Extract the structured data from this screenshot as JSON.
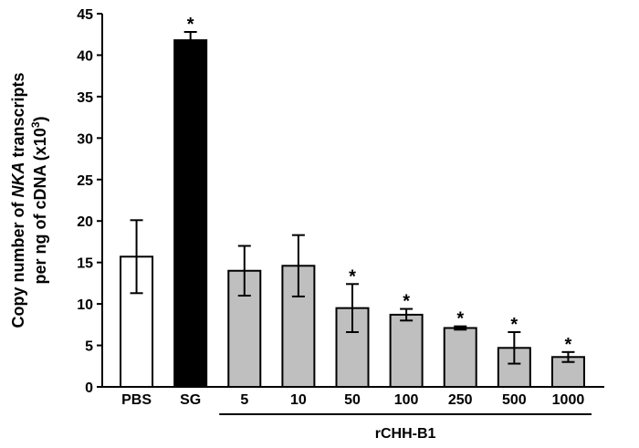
{
  "chart_data": {
    "type": "bar",
    "categories": [
      "PBS",
      "SG",
      "5",
      "10",
      "50",
      "100",
      "250",
      "500",
      "1000"
    ],
    "values": [
      15.7,
      41.8,
      14.0,
      14.6,
      9.5,
      8.7,
      7.1,
      4.7,
      3.6
    ],
    "errors": [
      4.4,
      1.0,
      3.0,
      3.7,
      2.9,
      0.7,
      0.2,
      1.9,
      0.6
    ],
    "significance": [
      "",
      "*",
      "",
      "",
      "*",
      "*",
      "*",
      "*",
      "*"
    ],
    "bar_colors": [
      "#ffffff",
      "#000000",
      "#bfbfbf",
      "#bfbfbf",
      "#bfbfbf",
      "#bfbfbf",
      "#bfbfbf",
      "#bfbfbf",
      "#bfbfbf"
    ],
    "ylabel_line1_pre": "Copy number of ",
    "ylabel_line1_italic": "NKA",
    "ylabel_line1_post": " transcripts",
    "ylabel_line2_pre": "per ng of cDNA (x10",
    "ylabel_line2_sup": "3",
    "ylabel_line2_post": ")",
    "group_label": "rCHH-B1",
    "group_start_index": 2,
    "ylim": [
      0,
      45
    ],
    "yticks": [
      0,
      5,
      10,
      15,
      20,
      25,
      30,
      35,
      40,
      45
    ],
    "grid": false,
    "legend": "none"
  }
}
